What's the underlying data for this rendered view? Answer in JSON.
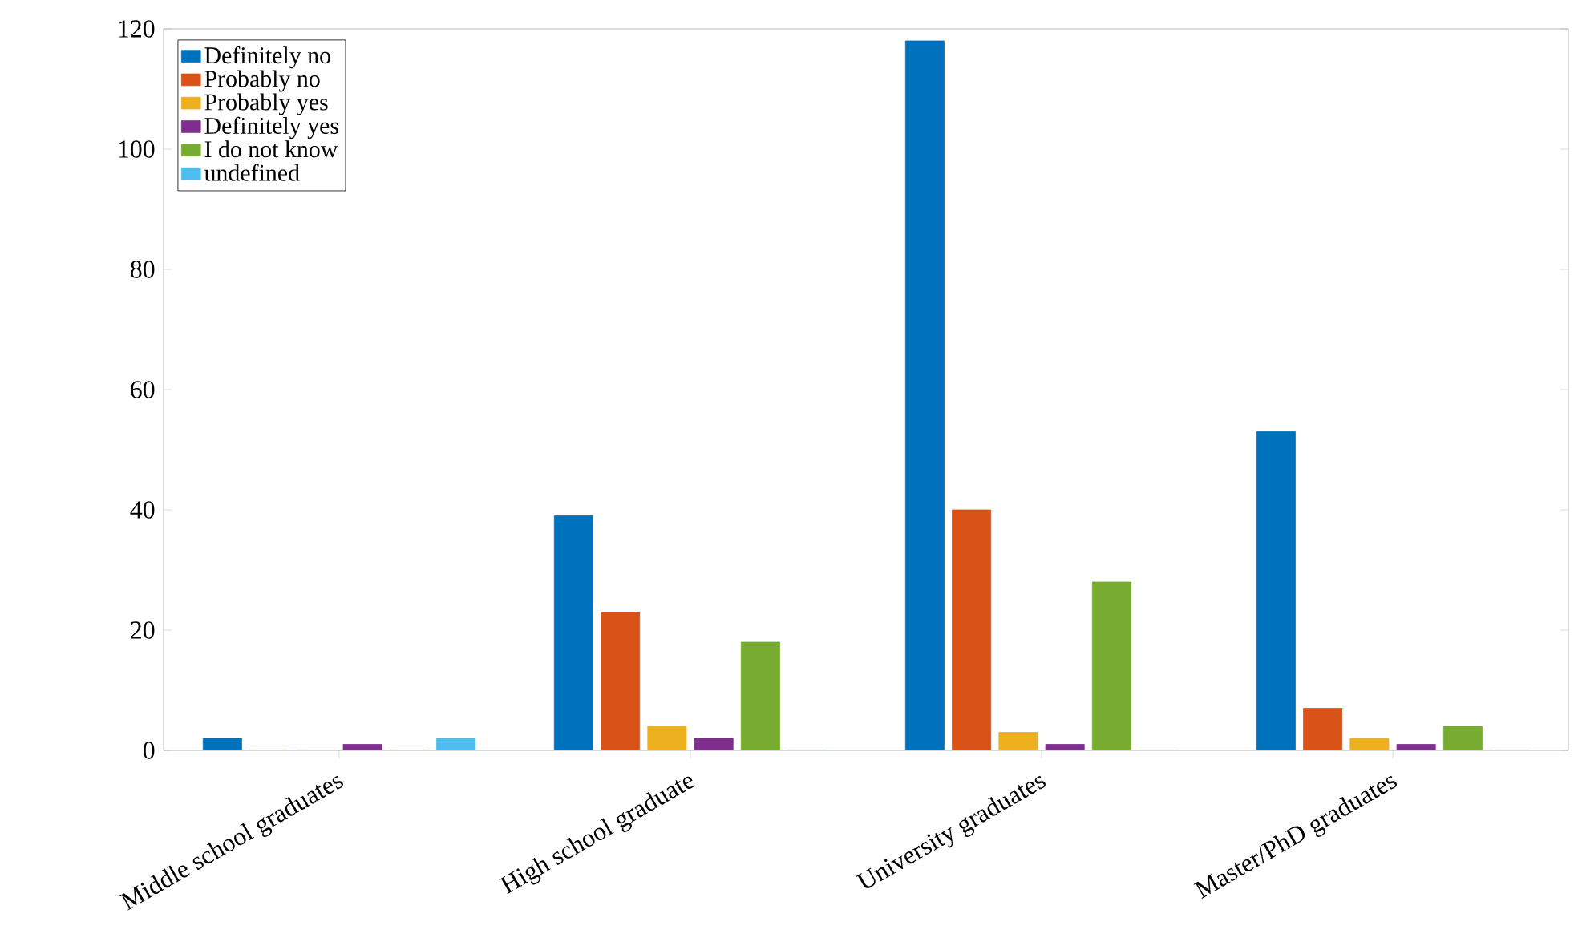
{
  "chart_data": {
    "type": "bar",
    "categories": [
      "Middle school graduates",
      "High school graduate",
      "University graduates",
      "Master/PhD graduates"
    ],
    "series": [
      {
        "name": "Definitely no",
        "color": "#0072bd",
        "values": [
          2,
          39,
          118,
          53
        ]
      },
      {
        "name": "Probably no",
        "color": "#d95319",
        "values": [
          0,
          23,
          40,
          7
        ]
      },
      {
        "name": "Probably yes",
        "color": "#edb120",
        "values": [
          0,
          4,
          3,
          2
        ]
      },
      {
        "name": "Definitely yes",
        "color": "#7e2f8e",
        "values": [
          1,
          2,
          1,
          1
        ]
      },
      {
        "name": "I do not know",
        "color": "#77ac30",
        "values": [
          0,
          18,
          28,
          4
        ]
      },
      {
        "name": "undefined",
        "color": "#4dbeee",
        "values": [
          2,
          0,
          0,
          0
        ]
      }
    ],
    "ylim": [
      0,
      120
    ],
    "yticks": [
      0,
      20,
      40,
      60,
      80,
      100,
      120
    ],
    "grid": false,
    "legend": "top left"
  }
}
